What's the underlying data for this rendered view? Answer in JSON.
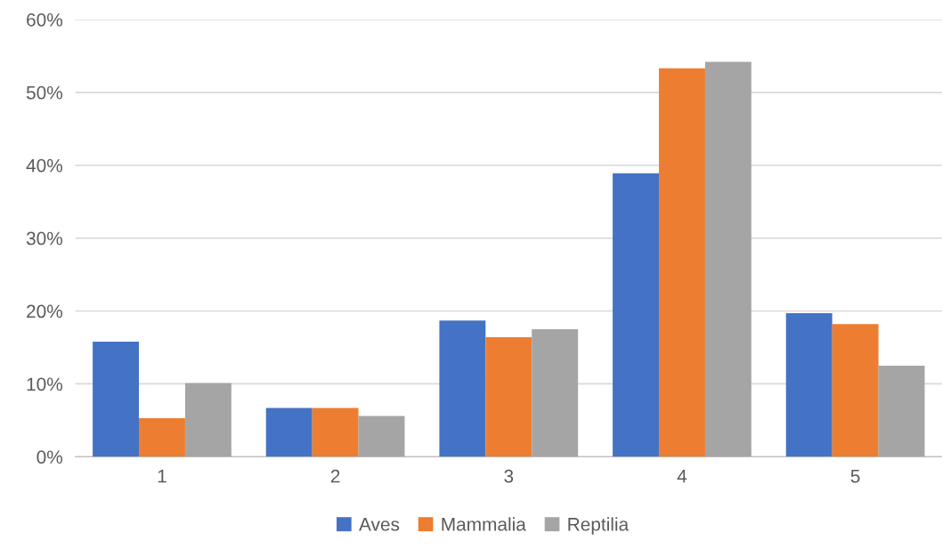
{
  "chart_data": {
    "type": "bar",
    "categories": [
      "1",
      "2",
      "3",
      "4",
      "5"
    ],
    "series": [
      {
        "name": "Aves",
        "color": "#4472c4",
        "values": [
          15.8,
          6.7,
          18.7,
          38.9,
          19.7
        ]
      },
      {
        "name": "Mammalia",
        "color": "#ed7d31",
        "values": [
          5.3,
          6.7,
          16.4,
          53.3,
          18.2
        ]
      },
      {
        "name": "Reptilia",
        "color": "#a5a5a5",
        "values": [
          10.1,
          5.6,
          17.5,
          54.2,
          12.5
        ]
      }
    ],
    "ylim": [
      0,
      60
    ],
    "yticks": [
      {
        "value": 0,
        "label": "0%"
      },
      {
        "value": 10,
        "label": "10%"
      },
      {
        "value": 20,
        "label": "20%"
      },
      {
        "value": 30,
        "label": "30%"
      },
      {
        "value": 40,
        "label": "40%"
      },
      {
        "value": 50,
        "label": "50%"
      },
      {
        "value": 60,
        "label": "60%"
      }
    ],
    "grid": "y",
    "legend": "bottom"
  }
}
